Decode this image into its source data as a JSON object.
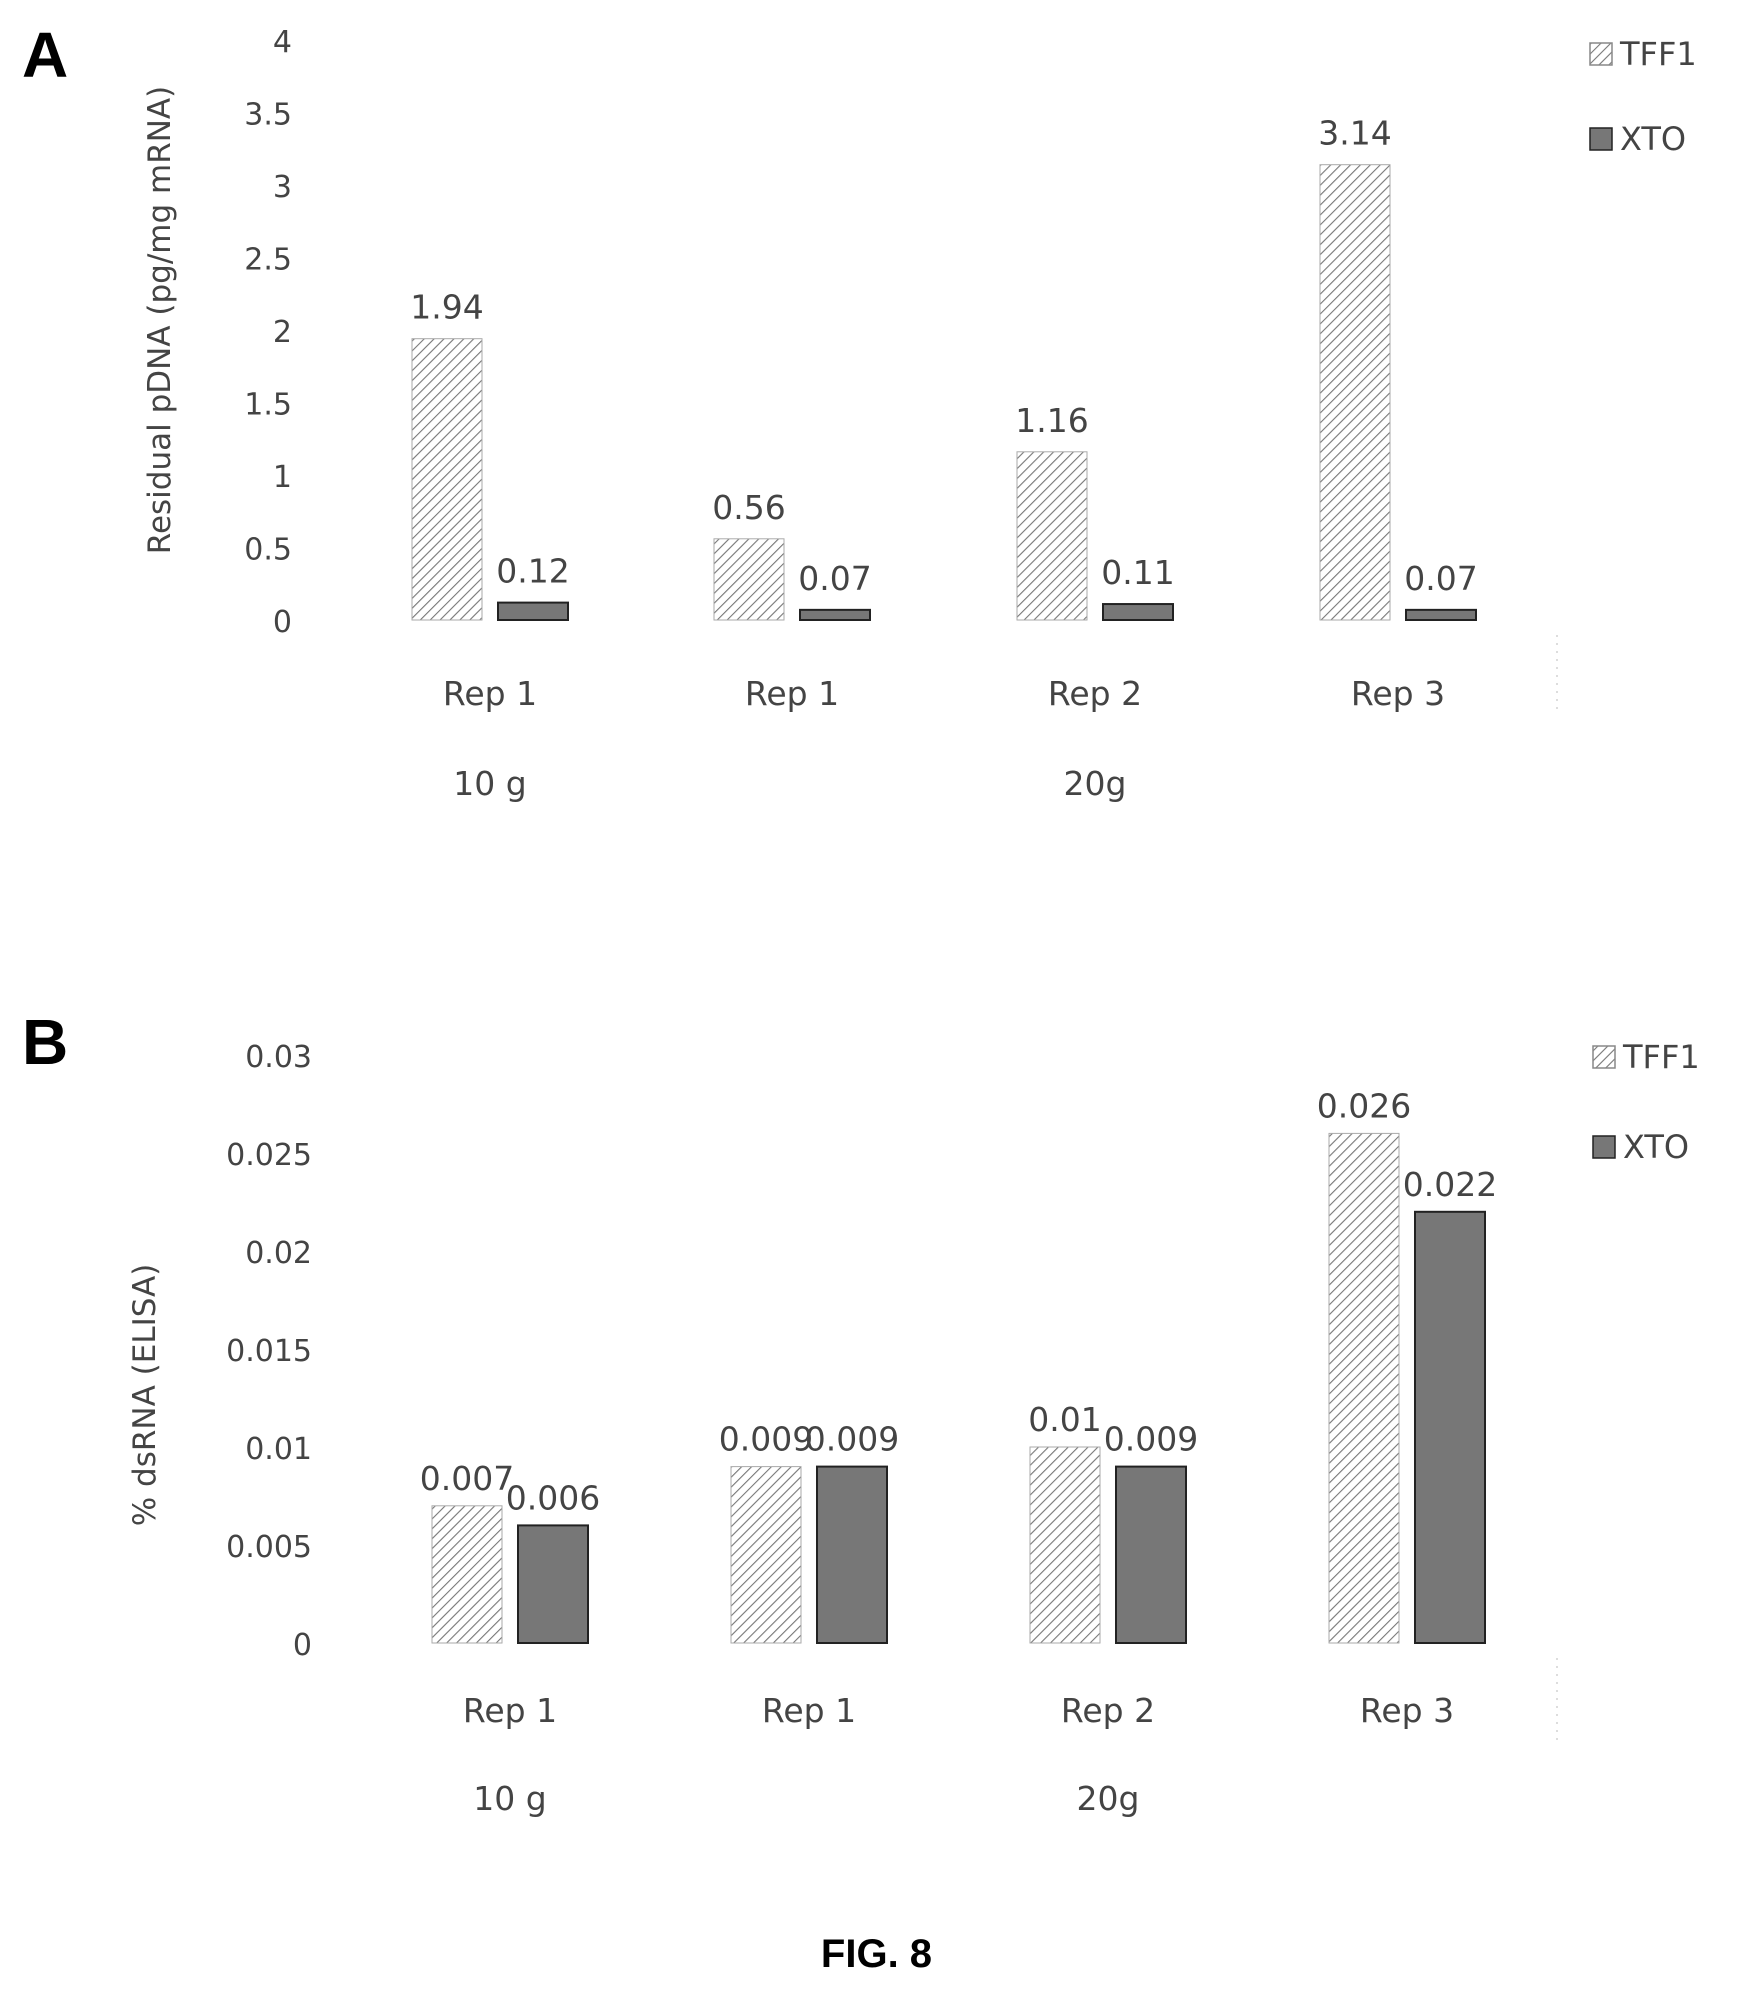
{
  "figure": {
    "panel_a_label": "A",
    "panel_b_label": "B",
    "caption": "FIG. 8"
  },
  "chart_data": [
    {
      "type": "bar",
      "title": "",
      "ylabel": "Residual pDNA (pg/mg mRNA)",
      "xlabel": "",
      "categories": [
        "Rep 1",
        "Rep 1",
        "Rep 2",
        "Rep 3"
      ],
      "groups": [
        {
          "label": "10 g",
          "categories": [
            0
          ]
        },
        {
          "label": "20g",
          "categories": [
            1,
            2,
            3
          ]
        }
      ],
      "yticks": [
        "0",
        "0.5",
        "1",
        "1.5",
        "2",
        "2.5",
        "3",
        "3.5",
        "4"
      ],
      "ylim": [
        0,
        4
      ],
      "series": [
        {
          "name": "TFF1",
          "values": [
            1.94,
            0.56,
            1.16,
            3.14
          ],
          "labels": [
            "1.94",
            "0.56",
            "1.16",
            "3.14"
          ],
          "pattern": "hatch"
        },
        {
          "name": "XTO",
          "values": [
            0.12,
            0.07,
            0.11,
            0.07
          ],
          "labels": [
            "0.12",
            "0.07",
            "0.11",
            "0.07"
          ],
          "color": "#777777"
        }
      ],
      "legend": "top-right",
      "grid": false
    },
    {
      "type": "bar",
      "title": "",
      "ylabel": "% dsRNA (ELISA)",
      "xlabel": "",
      "categories": [
        "Rep 1",
        "Rep 1",
        "Rep 2",
        "Rep 3"
      ],
      "groups": [
        {
          "label": "10 g",
          "categories": [
            0
          ]
        },
        {
          "label": "20g",
          "categories": [
            1,
            2,
            3
          ]
        }
      ],
      "yticks": [
        "0",
        "0.005",
        "0.01",
        "0.015",
        "0.02",
        "0.025",
        "0.03"
      ],
      "ylim": [
        0,
        0.03
      ],
      "series": [
        {
          "name": "TFF1",
          "values": [
            0.007,
            0.009,
            0.01,
            0.026
          ],
          "labels": [
            "0.007",
            "0.009",
            "0.01",
            "0.026"
          ],
          "pattern": "hatch"
        },
        {
          "name": "XTO",
          "values": [
            0.006,
            0.009,
            0.009,
            0.022
          ],
          "labels": [
            "0.006",
            "0.009",
            "0.009",
            "0.022"
          ],
          "color": "#777777"
        }
      ],
      "legend": "top-right",
      "grid": false
    }
  ]
}
